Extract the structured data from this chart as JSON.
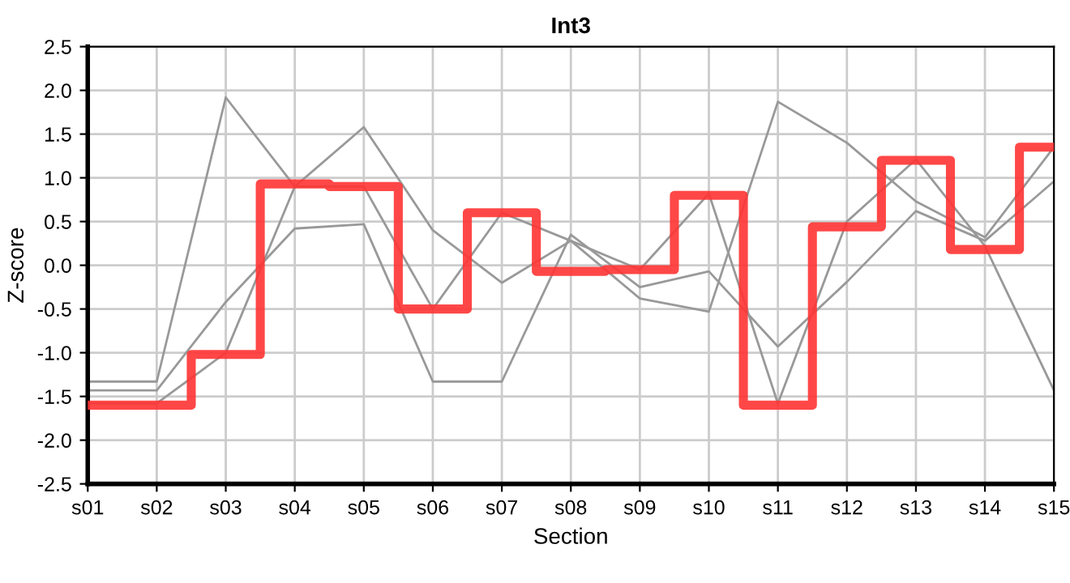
{
  "chart_data": {
    "type": "line",
    "title": "Int3",
    "xlabel": "Section",
    "ylabel": "Z-score",
    "categories": [
      "s01",
      "s02",
      "s03",
      "s04",
      "s05",
      "s06",
      "s07",
      "s08",
      "s09",
      "s10",
      "s11",
      "s12",
      "s13",
      "s14",
      "s15"
    ],
    "series": [
      {
        "color": "#999999",
        "values": [
          -1.33,
          -1.33,
          1.92,
          0.9,
          0.9,
          -0.5,
          0.6,
          0.28,
          -0.05,
          0.82,
          -1.58,
          0.5,
          1.21,
          0.22,
          -1.43
        ]
      },
      {
        "color": "#999999",
        "values": [
          -1.58,
          -1.58,
          -1.0,
          0.9,
          1.58,
          0.4,
          -0.2,
          0.28,
          -0.38,
          -0.53,
          1.87,
          1.4,
          0.73,
          0.32,
          1.35
        ]
      },
      {
        "color": "#999999",
        "values": [
          -1.43,
          -1.43,
          -0.42,
          0.42,
          0.47,
          -1.33,
          -1.33,
          0.35,
          -0.25,
          -0.07,
          -0.93,
          -0.19,
          0.62,
          0.28,
          0.96
        ]
      },
      {
        "type": "step",
        "color": "#ff3333",
        "values": [
          -1.6,
          -1.6,
          -1.02,
          0.93,
          0.9,
          -0.5,
          0.6,
          -0.07,
          -0.05,
          0.8,
          -1.6,
          0.44,
          1.2,
          0.18,
          1.35
        ]
      }
    ],
    "ylim": [
      -2.5,
      2.5
    ],
    "yticks": [
      {
        "value": -2.5,
        "label": "-2.5"
      },
      {
        "value": -2,
        "label": "-2.0"
      },
      {
        "value": -1.5,
        "label": "-1.5"
      },
      {
        "value": -1,
        "label": "-1.0"
      },
      {
        "value": -0.5,
        "label": "-0.5"
      },
      {
        "value": 0,
        "label": "0.0"
      },
      {
        "value": 0.5,
        "label": "0.5"
      },
      {
        "value": 1,
        "label": "1.0"
      },
      {
        "value": 1.5,
        "label": "1.5"
      },
      {
        "value": 2,
        "label": "2.0"
      },
      {
        "value": 2.5,
        "label": "2.5"
      }
    ],
    "grid": true
  }
}
